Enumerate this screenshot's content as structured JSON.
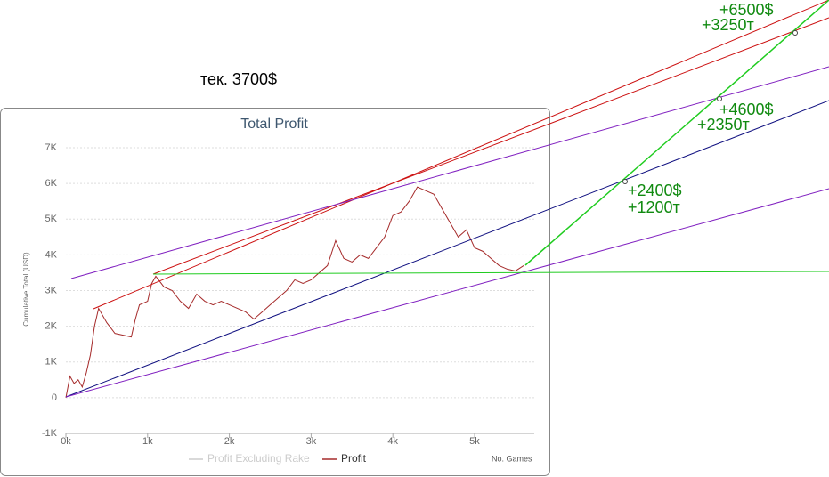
{
  "chart_data": {
    "type": "line",
    "title": "Total Profit",
    "y_label": "Cumulative Total (USD)",
    "x_label": "No. Games",
    "x": [
      0,
      50,
      100,
      150,
      200,
      250,
      300,
      350,
      400,
      500,
      600,
      700,
      800,
      850,
      900,
      1000,
      1050,
      1100,
      1200,
      1300,
      1400,
      1500,
      1600,
      1700,
      1800,
      1900,
      2000,
      2100,
      2200,
      2300,
      2400,
      2500,
      2600,
      2700,
      2800,
      2900,
      3000,
      3100,
      3200,
      3300,
      3400,
      3500,
      3600,
      3700,
      3800,
      3900,
      4000,
      4100,
      4200,
      4300,
      4400,
      4500,
      4600,
      4700,
      4800,
      4900,
      5000,
      5100,
      5200,
      5300,
      5400,
      5500,
      5600
    ],
    "series": [
      {
        "name": "Profit Excluding Rake",
        "color": "#cccccc",
        "visible": false
      },
      {
        "name": "Profit",
        "color": "#a52a2a",
        "visible": true,
        "values": [
          0,
          600,
          400,
          500,
          300,
          700,
          1200,
          2000,
          2500,
          2100,
          1800,
          1750,
          1700,
          2200,
          2600,
          2700,
          3200,
          3400,
          3100,
          3000,
          2700,
          2500,
          2900,
          2700,
          2600,
          2700,
          2600,
          2500,
          2400,
          2200,
          2400,
          2600,
          2800,
          3000,
          3300,
          3200,
          3300,
          3500,
          3700,
          4400,
          3900,
          3800,
          4000,
          3900,
          4200,
          4500,
          5100,
          5200,
          5500,
          5900,
          5800,
          5700,
          5300,
          4900,
          4500,
          4700,
          4200,
          4100,
          3900,
          3700,
          3600,
          3550,
          3700
        ]
      }
    ],
    "xlim": [
      0,
      5730
    ],
    "ylim": [
      -1000,
      7000
    ],
    "xticks": [
      {
        "value": 0,
        "label": "0k"
      },
      {
        "value": 1000,
        "label": "1k"
      },
      {
        "value": 2000,
        "label": "2k"
      },
      {
        "value": 3000,
        "label": "3k"
      },
      {
        "value": 4000,
        "label": "4k"
      },
      {
        "value": 5000,
        "label": "5k"
      }
    ],
    "yticks": [
      {
        "value": -1000,
        "label": "-1K"
      },
      0,
      {
        "value": 1000,
        "label": "1K"
      },
      {
        "value": 2000,
        "label": "2K"
      },
      {
        "value": 3000,
        "label": "3K"
      },
      {
        "value": 4000,
        "label": "4K"
      },
      {
        "value": 5000,
        "label": "5K"
      },
      {
        "value": 6000,
        "label": "6K"
      },
      {
        "value": 7000,
        "label": "7K"
      }
    ],
    "grid": true,
    "annotations": [
      {
        "text": "тек. 3700$",
        "color": "#000000"
      },
      {
        "text": "+6500$",
        "color": "#108a10"
      },
      {
        "text": "+3250т",
        "color": "#108a10"
      },
      {
        "text": "+4600$",
        "color": "#108a10"
      },
      {
        "text": "+2350т",
        "color": "#108a10"
      },
      {
        "text": "+2400$",
        "color": "#108a10"
      },
      {
        "text": "+1200т",
        "color": "#108a10"
      }
    ]
  }
}
